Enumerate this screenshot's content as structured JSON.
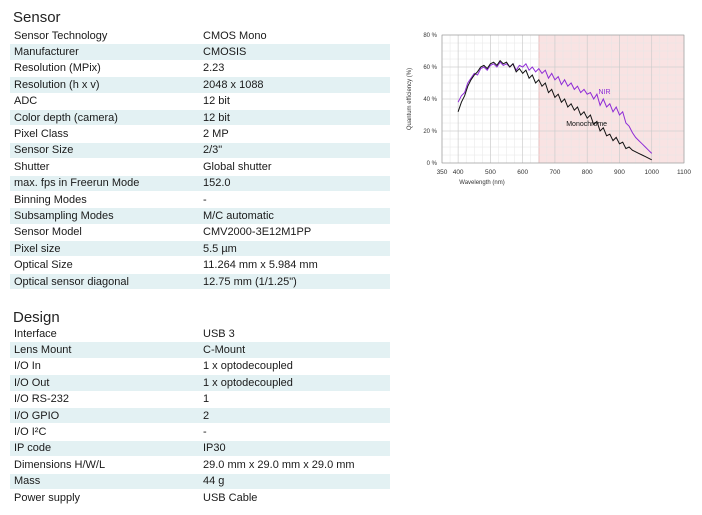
{
  "sensor": {
    "title": "Sensor",
    "rows": [
      {
        "label": "Sensor Technology",
        "value": "CMOS Mono"
      },
      {
        "label": "Manufacturer",
        "value": "CMOSIS"
      },
      {
        "label": "Resolution (MPix)",
        "value": "2.23"
      },
      {
        "label": "Resolution (h x v)",
        "value": "2048 x 1088"
      },
      {
        "label": "ADC",
        "value": "12 bit"
      },
      {
        "label": "Color depth (camera)",
        "value": "12 bit"
      },
      {
        "label": "Pixel Class",
        "value": "2 MP"
      },
      {
        "label": "Sensor Size",
        "value": "2/3\""
      },
      {
        "label": "Shutter",
        "value": "Global shutter"
      },
      {
        "label": "max. fps in Freerun Mode",
        "value": "152.0"
      },
      {
        "label": "Binning Modes",
        "value": "-"
      },
      {
        "label": "Subsampling Modes",
        "value": "M/C automatic"
      },
      {
        "label": "Sensor Model",
        "value": "CMV2000-3E12M1PP"
      },
      {
        "label": "Pixel size",
        "value": "5.5 µm"
      },
      {
        "label": "Optical Size",
        "value": "11.264 mm x 5.984 mm"
      },
      {
        "label": "Optical sensor diagonal",
        "value": "12.75 mm (1/1.25\")"
      }
    ]
  },
  "design": {
    "title": "Design",
    "rows": [
      {
        "label": "Interface",
        "value": "USB 3"
      },
      {
        "label": "Lens Mount",
        "value": "C-Mount"
      },
      {
        "label": "I/O In",
        "value": "1 x optodecoupled"
      },
      {
        "label": "I/O Out",
        "value": "1 x optodecoupled"
      },
      {
        "label": "I/O RS-232",
        "value": "1"
      },
      {
        "label": "I/O GPIO",
        "value": "2"
      },
      {
        "label": "I/O I²C",
        "value": "-"
      },
      {
        "label": "IP code",
        "value": "IP30"
      },
      {
        "label": "Dimensions H/W/L",
        "value": "29.0 mm x 29.0 mm x 29.0 mm"
      },
      {
        "label": "Mass",
        "value": "44 g"
      },
      {
        "label": "Power supply",
        "value": "USB Cable"
      }
    ]
  },
  "chart_data": {
    "type": "line",
    "title": "",
    "xlabel": "Wavelength (nm)",
    "ylabel": "Quantum efficiency (%)",
    "xlim": [
      350,
      1100
    ],
    "ylim": [
      0,
      80
    ],
    "xticks": [
      350,
      400,
      500,
      600,
      700,
      800,
      900,
      1000,
      1100
    ],
    "yticks": [
      0,
      20,
      40,
      60,
      80
    ],
    "ytick_labels": [
      "0 %",
      "20 %",
      "40 %",
      "60 %",
      "80 %"
    ],
    "grid": true,
    "shaded_region": {
      "from": 650,
      "to": 1100,
      "color": "#f9e3e3"
    },
    "series": [
      {
        "name": "NIR",
        "color": "#8e2bd6",
        "x": [
          400,
          410,
          420,
          430,
          440,
          450,
          460,
          470,
          480,
          490,
          500,
          510,
          520,
          530,
          540,
          550,
          560,
          570,
          580,
          590,
          600,
          610,
          620,
          630,
          640,
          650,
          660,
          670,
          680,
          690,
          700,
          710,
          720,
          730,
          740,
          750,
          760,
          770,
          780,
          790,
          800,
          810,
          820,
          830,
          840,
          850,
          860,
          870,
          880,
          890,
          900,
          910,
          920,
          930,
          940,
          950,
          960,
          970,
          980,
          990,
          1000
        ],
        "values": [
          38,
          42,
          44,
          50,
          53,
          56,
          55,
          59,
          60,
          58,
          61,
          62,
          60,
          63,
          61,
          62,
          60,
          62,
          58,
          61,
          60,
          62,
          58,
          60,
          57,
          59,
          56,
          58,
          53,
          56,
          52,
          54,
          49,
          52,
          48,
          50,
          46,
          48,
          44,
          46,
          43,
          44,
          40,
          43,
          36,
          40,
          35,
          37,
          32,
          35,
          30,
          32,
          25,
          23,
          19,
          16,
          14,
          12,
          10,
          8,
          6
        ]
      },
      {
        "name": "Monochrome",
        "color": "#111111",
        "x": [
          400,
          410,
          420,
          430,
          440,
          450,
          460,
          470,
          480,
          490,
          500,
          510,
          520,
          530,
          540,
          550,
          560,
          570,
          580,
          590,
          600,
          610,
          620,
          630,
          640,
          650,
          660,
          670,
          680,
          690,
          700,
          710,
          720,
          730,
          740,
          750,
          760,
          770,
          780,
          790,
          800,
          810,
          820,
          830,
          840,
          850,
          860,
          870,
          880,
          890,
          900,
          910,
          920,
          930,
          940,
          950,
          960,
          970,
          980,
          990,
          1000
        ],
        "values": [
          32,
          38,
          42,
          48,
          52,
          55,
          57,
          60,
          61,
          59,
          62,
          63,
          61,
          64,
          62,
          63,
          60,
          62,
          57,
          59,
          56,
          58,
          53,
          55,
          50,
          52,
          48,
          50,
          44,
          46,
          41,
          43,
          38,
          40,
          35,
          37,
          33,
          35,
          30,
          32,
          28,
          30,
          24,
          26,
          20,
          22,
          17,
          18,
          14,
          16,
          12,
          13,
          9,
          10,
          8,
          7,
          6,
          5,
          4,
          3,
          2
        ]
      }
    ],
    "annotations": [
      {
        "text": "NIR",
        "x": 835,
        "y": 43,
        "color": "#8e2bd6"
      },
      {
        "text": "Monochrome",
        "x": 735,
        "y": 23,
        "color": "#111111"
      }
    ]
  }
}
